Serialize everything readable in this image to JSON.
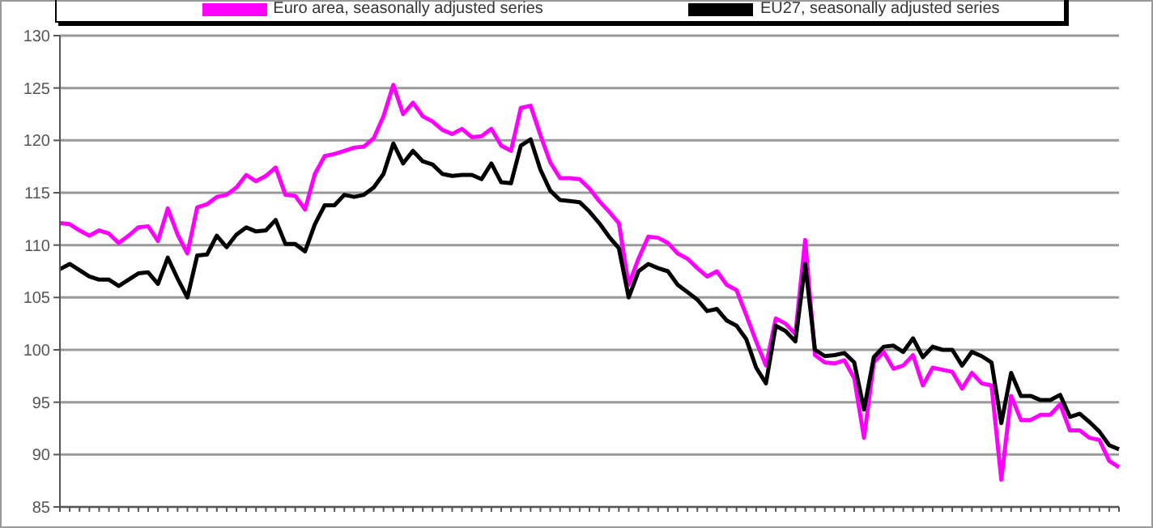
{
  "chart_data": {
    "type": "line",
    "categories": [
      null,
      null,
      null,
      null,
      null,
      null,
      null,
      null,
      null,
      null,
      null,
      null,
      null,
      null,
      null,
      null,
      null,
      null,
      null,
      null,
      null,
      null,
      null,
      null,
      null,
      null,
      null,
      null,
      null,
      null,
      null,
      null,
      null,
      null,
      null,
      null,
      null,
      null,
      null,
      null,
      null,
      null,
      null,
      null,
      null,
      null,
      null,
      null,
      null,
      null,
      null,
      null,
      null,
      null,
      null,
      null,
      null,
      null,
      null,
      null,
      null,
      null,
      null,
      null,
      null,
      null,
      null,
      null,
      null,
      null,
      null,
      null,
      null,
      null,
      null,
      null,
      null,
      null,
      null,
      null,
      null,
      null,
      null,
      null,
      null,
      null,
      null,
      null,
      null,
      null,
      null,
      null,
      null,
      null,
      null,
      null,
      null,
      null,
      null,
      null,
      null,
      null,
      null,
      null,
      null,
      null,
      null,
      null,
      null
    ],
    "series": [
      {
        "name": "Euro area, seasonally adjusted series",
        "color": "#ff00ff",
        "values": [
          112.1,
          112.0,
          111.4,
          110.9,
          111.4,
          111.1,
          110.2,
          110.9,
          111.7,
          111.8,
          110.4,
          113.5,
          111.0,
          109.2,
          113.6,
          113.9,
          114.6,
          114.8,
          115.5,
          116.7,
          116.1,
          116.6,
          117.4,
          114.8,
          114.7,
          113.4,
          116.8,
          118.5,
          118.7,
          119.0,
          119.3,
          119.4,
          120.2,
          122.3,
          125.3,
          122.5,
          123.6,
          122.3,
          121.8,
          121.0,
          120.6,
          121.1,
          120.3,
          120.4,
          121.1,
          119.5,
          119.0,
          123.1,
          123.3,
          120.5,
          117.9,
          116.4,
          116.4,
          116.3,
          115.4,
          114.2,
          113.2,
          112.1,
          106.2,
          108.7,
          110.8,
          110.7,
          110.2,
          109.2,
          108.7,
          107.8,
          107.0,
          107.5,
          106.2,
          105.7,
          103.3,
          100.8,
          98.5,
          103.0,
          102.5,
          101.5,
          110.5,
          99.5,
          98.8,
          98.7,
          99.0,
          97.3,
          91.6,
          98.8,
          99.8,
          98.2,
          98.5,
          99.5,
          96.6,
          98.3,
          98.1,
          97.9,
          96.3,
          97.8,
          96.8,
          96.6,
          87.6,
          95.6,
          93.3,
          93.3,
          93.8,
          93.8,
          94.8,
          92.3,
          92.3,
          91.6,
          91.4,
          89.4,
          88.8
        ]
      },
      {
        "name": "EU27, seasonally adjusted series",
        "color": "#000000",
        "values": [
          107.7,
          108.2,
          107.6,
          107.0,
          106.7,
          106.7,
          106.1,
          106.7,
          107.3,
          107.4,
          106.3,
          108.8,
          106.8,
          105.0,
          109.0,
          109.1,
          110.9,
          109.8,
          111.0,
          111.7,
          111.3,
          111.4,
          112.4,
          110.1,
          110.1,
          109.4,
          112.0,
          113.8,
          113.8,
          114.8,
          114.6,
          114.8,
          115.5,
          116.8,
          119.7,
          117.8,
          119.0,
          118.0,
          117.7,
          116.8,
          116.6,
          116.7,
          116.7,
          116.3,
          117.8,
          116.0,
          115.9,
          119.5,
          120.1,
          117.2,
          115.2,
          114.3,
          114.2,
          114.1,
          113.2,
          112.1,
          110.8,
          109.7,
          105.0,
          107.5,
          108.2,
          107.8,
          107.5,
          106.2,
          105.5,
          104.8,
          103.7,
          103.9,
          102.8,
          102.3,
          101.0,
          98.3,
          96.8,
          102.3,
          101.8,
          100.8,
          108.2,
          100.0,
          99.4,
          99.5,
          99.7,
          98.8,
          94.3,
          99.3,
          100.3,
          100.4,
          99.8,
          101.1,
          99.3,
          100.3,
          100.0,
          100.0,
          98.5,
          99.8,
          99.4,
          98.8,
          93.0,
          97.8,
          95.6,
          95.6,
          95.2,
          95.2,
          95.7,
          93.6,
          93.9,
          93.1,
          92.2,
          90.9,
          90.5
        ]
      }
    ],
    "ylim": [
      85,
      130
    ],
    "yticks": [
      85,
      90,
      95,
      100,
      105,
      110,
      115,
      120,
      125,
      130
    ],
    "grid": "y",
    "legend": "top",
    "marker": "none",
    "line_style": "solid"
  }
}
